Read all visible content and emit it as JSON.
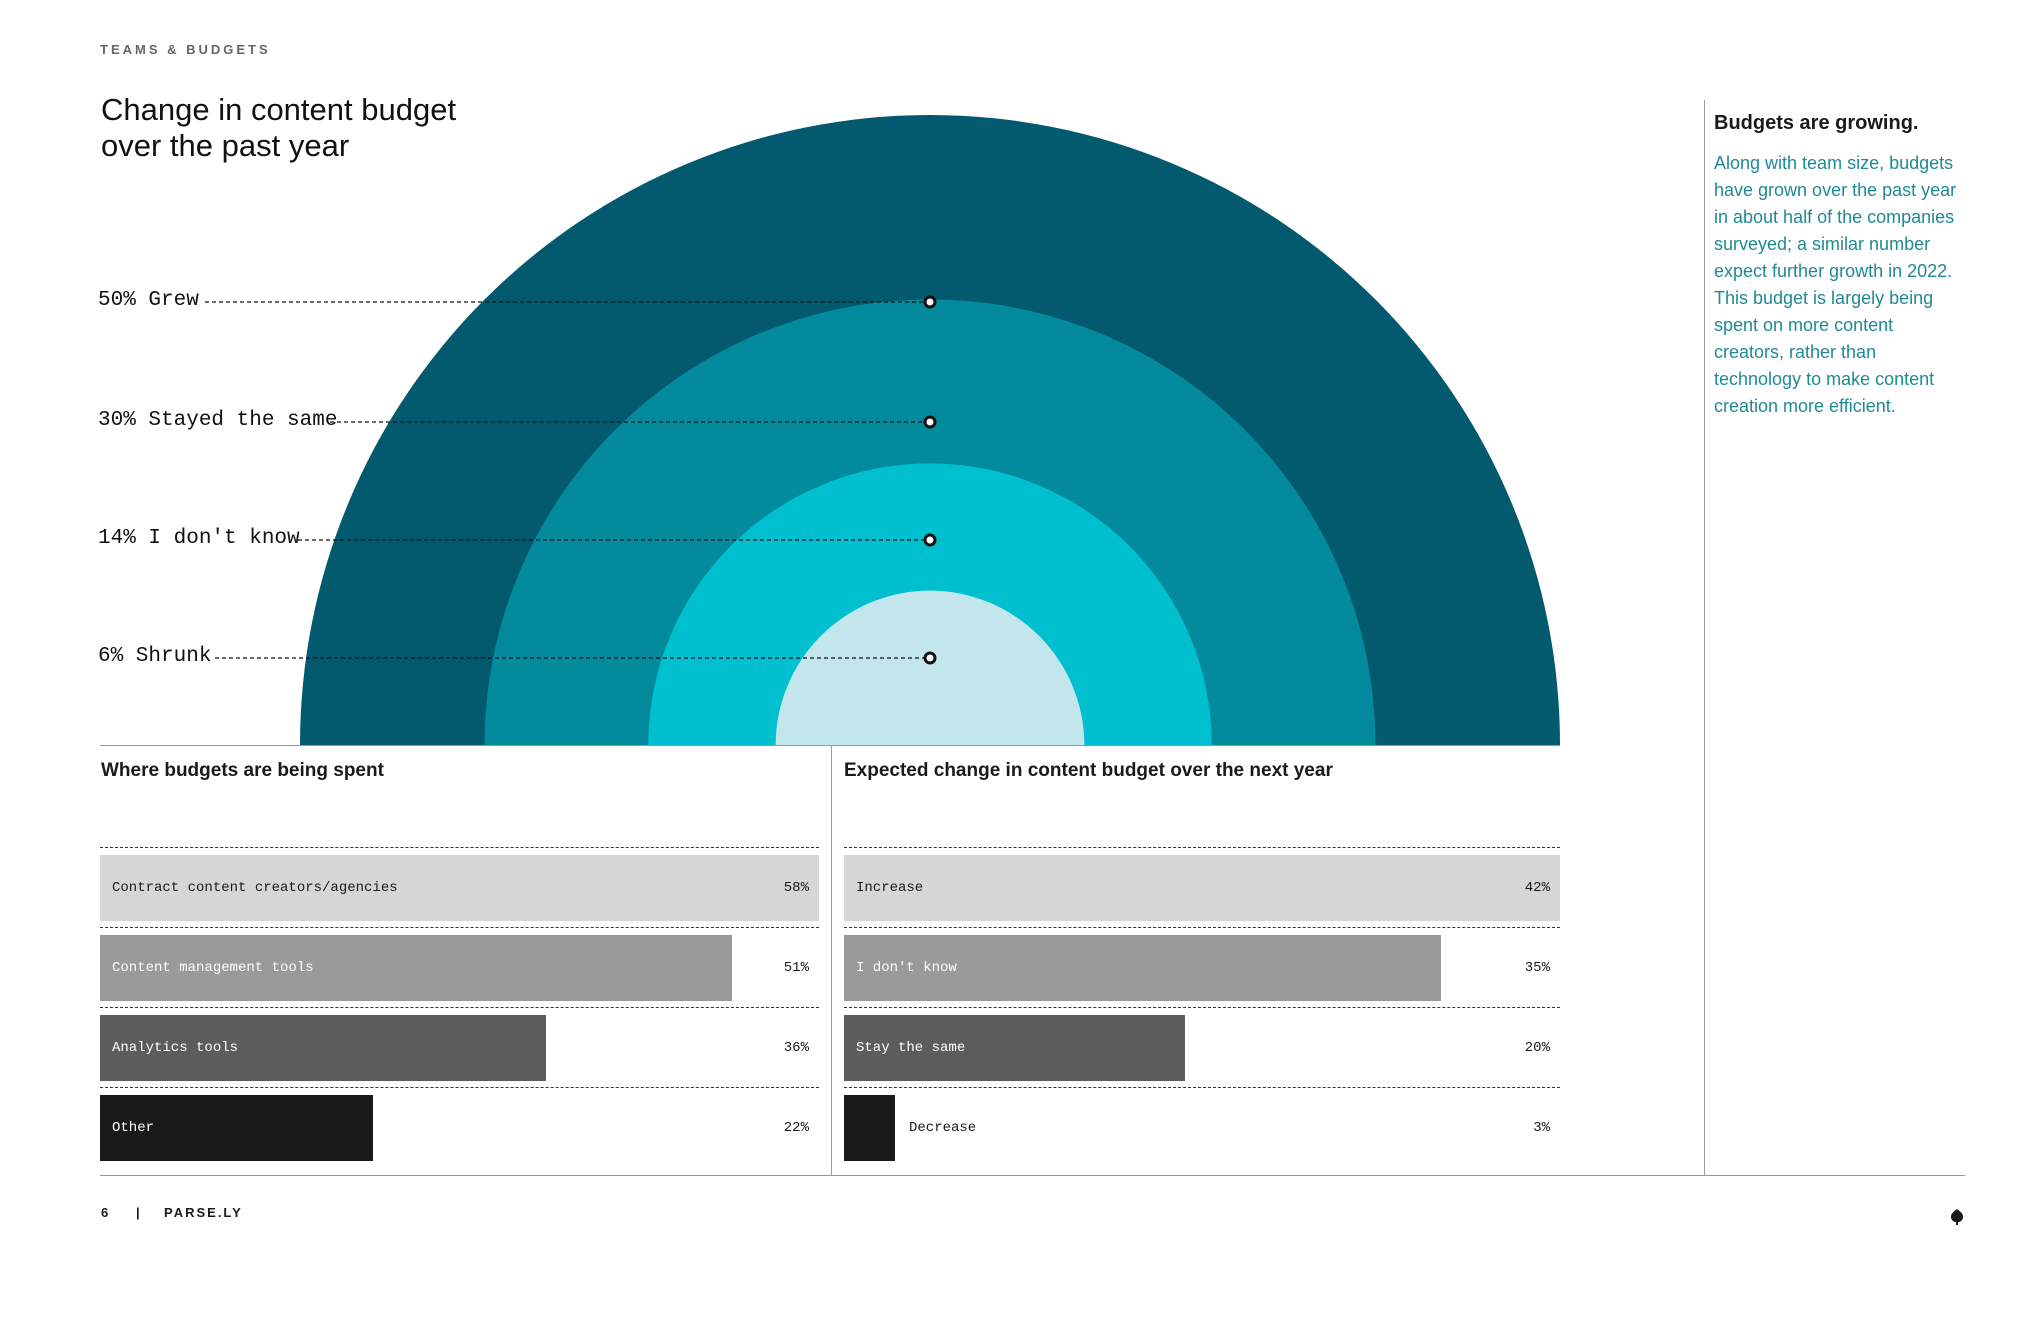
{
  "section_label": "TEAMS & BUDGETS",
  "main_title_line1": "Change in content budget",
  "main_title_line2": "over the past year",
  "sidebar": {
    "heading": "Budgets are growing.",
    "body": "Along with team size, budgets have grown over the past year in about half of the companies surveyed; a similar number expect further growth in 2022. This budget is largely being spent on more content creators, rather than technology to make content creation more efficient."
  },
  "footer": {
    "page_number": "6",
    "separator": "|",
    "brand": "PARSE.LY"
  },
  "colors": {
    "ring_grew": "#035a6e",
    "ring_same": "#038a9c",
    "ring_dontknow": "#00c0d0",
    "ring_shrunk": "#c3e6ec",
    "bar_1": "#d6d6d6",
    "bar_2": "#9a9a9a",
    "bar_3": "#5c5c5c",
    "bar_4": "#1a1a1a",
    "sidebar_text": "#1f8a94"
  },
  "chart_data": [
    {
      "type": "pie",
      "title": "Change in content budget over the past year",
      "categories": [
        "Grew",
        "Stayed the same",
        "I don't know",
        "Shrunk"
      ],
      "values": [
        50,
        30,
        14,
        6
      ],
      "labels": [
        "50% Grew",
        "30% Stayed the same",
        "14% I don't know",
        "6% Shrunk"
      ]
    },
    {
      "type": "bar",
      "title": "Where budgets are being spent",
      "categories": [
        "Contract content creators/agencies",
        "Content management tools",
        "Analytics tools",
        "Other"
      ],
      "values": [
        58,
        51,
        36,
        22
      ],
      "value_labels": [
        "58%",
        "51%",
        "36%",
        "22%"
      ],
      "xlim": [
        0,
        58
      ]
    },
    {
      "type": "bar",
      "title": "Expected change in content budget over the next year",
      "categories": [
        "Increase",
        "I don't know",
        "Stay the same",
        "Decrease"
      ],
      "values": [
        42,
        35,
        20,
        3
      ],
      "value_labels": [
        "42%",
        "35%",
        "20%",
        "3%"
      ],
      "xlim": [
        0,
        42
      ]
    }
  ]
}
